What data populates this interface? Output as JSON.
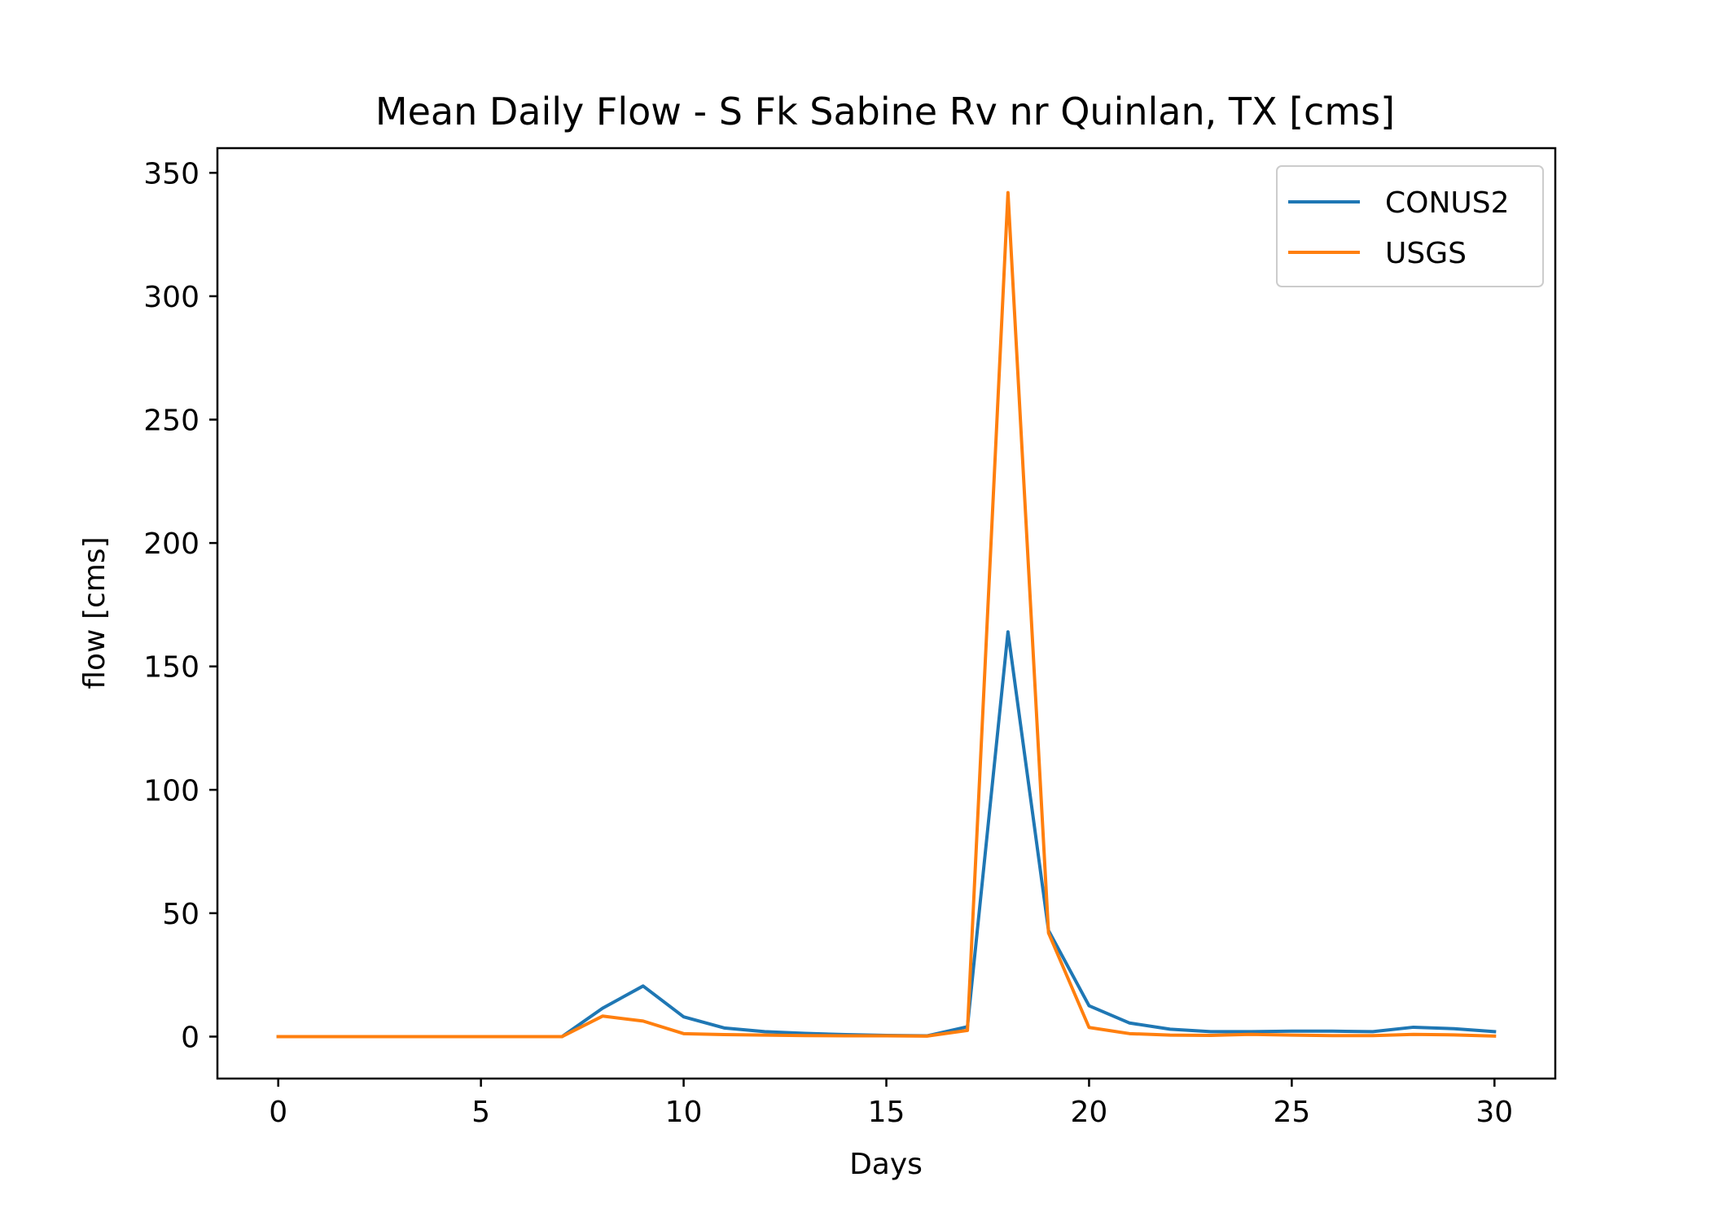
{
  "chart_data": {
    "type": "line",
    "title": "Mean Daily Flow - S Fk Sabine Rv nr Quinlan, TX [cms]",
    "xlabel": "Days",
    "ylabel": "flow [cms]",
    "xlim": [
      -1.5,
      31.5
    ],
    "ylim": [
      -17,
      360
    ],
    "xticks": [
      0,
      5,
      10,
      15,
      20,
      25,
      30
    ],
    "yticks": [
      0,
      50,
      100,
      150,
      200,
      250,
      300,
      350
    ],
    "grid": false,
    "legend_position": "top-right",
    "x": [
      0,
      1,
      2,
      3,
      4,
      5,
      6,
      7,
      8,
      9,
      10,
      11,
      12,
      13,
      14,
      15,
      16,
      17,
      18,
      19,
      20,
      21,
      22,
      23,
      24,
      25,
      26,
      27,
      28,
      29,
      30
    ],
    "series": [
      {
        "name": "CONUS2",
        "color": "#1f77b4",
        "values": [
          0,
          0,
          0,
          0,
          0,
          0,
          0,
          0,
          11.5,
          20.5,
          8,
          3.5,
          2,
          1.3,
          0.8,
          0.5,
          0.3,
          4,
          164,
          43,
          12.5,
          5.5,
          3,
          2,
          2,
          2.2,
          2.2,
          2,
          3.8,
          3.2,
          2
        ]
      },
      {
        "name": "USGS",
        "color": "#ff7f0e",
        "values": [
          0,
          0,
          0,
          0,
          0,
          0,
          0,
          0,
          8.3,
          6.3,
          1.2,
          0.8,
          0.6,
          0.4,
          0.3,
          0.3,
          0.2,
          2.5,
          342,
          42,
          3.7,
          1.2,
          0.6,
          0.5,
          0.9,
          0.6,
          0.4,
          0.4,
          0.9,
          0.7,
          0.2
        ]
      }
    ]
  }
}
